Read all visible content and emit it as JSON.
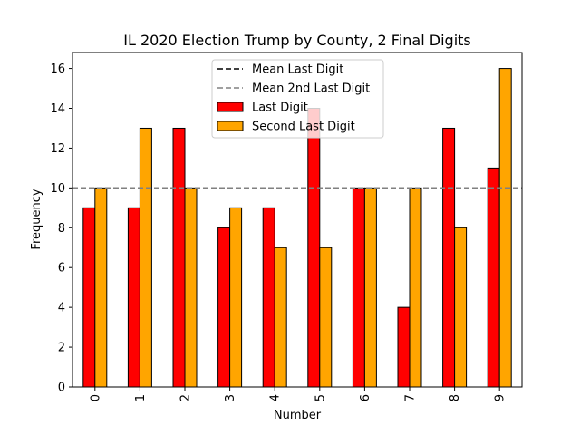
{
  "chart_data": {
    "type": "bar",
    "title": "IL 2020 Election Trump by County, 2 Final Digits",
    "xlabel": "Number",
    "ylabel": "Frequency",
    "categories": [
      "0",
      "1",
      "2",
      "3",
      "4",
      "5",
      "6",
      "7",
      "8",
      "9"
    ],
    "series": [
      {
        "name": "Last Digit",
        "color": "#ff0000",
        "values": [
          9,
          9,
          13,
          8,
          9,
          14,
          10,
          4,
          13,
          11
        ]
      },
      {
        "name": "Second Last Digit",
        "color": "#ffa500",
        "values": [
          10,
          13,
          10,
          9,
          7,
          7,
          10,
          10,
          8,
          16
        ]
      }
    ],
    "reference_lines": [
      {
        "name": "Mean Last Digit",
        "value": 10,
        "color": "#000000",
        "style": "dashed"
      },
      {
        "name": "Mean 2nd Last Digit",
        "value": 10,
        "color": "#808080",
        "style": "dashed"
      }
    ],
    "yticks": [
      0,
      2,
      4,
      6,
      8,
      10,
      12,
      14,
      16
    ],
    "ylim": [
      0,
      16.8
    ],
    "grid": false,
    "legend_position": "top-center"
  }
}
